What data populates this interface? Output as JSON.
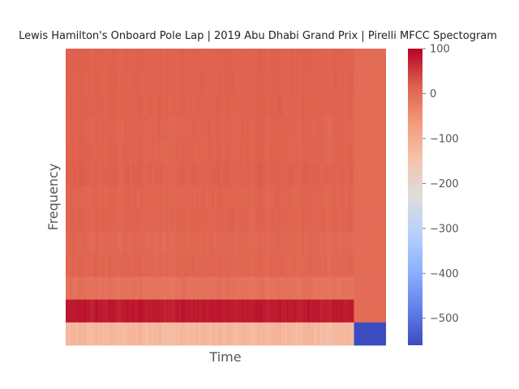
{
  "chart_data": {
    "type": "heatmap",
    "title": "Lewis Hamilton's Onboard Pole Lap | 2019 Abu Dhabi Grand Prix | Pirelli MFCC Spectogram",
    "xlabel": "Time",
    "ylabel": "Frequency",
    "x_ticks_shown": false,
    "y_ticks_shown": false,
    "grid": false,
    "colormap": "coolwarm",
    "value_range": [
      -560,
      100
    ],
    "colorbar": {
      "position": "right",
      "ticks": [
        100,
        0,
        -100,
        -200,
        -300,
        -400,
        -500
      ],
      "tick_labels": [
        "100",
        "0",
        "−100",
        "−200",
        "−300",
        "−400",
        "−500"
      ]
    },
    "n_coefficients": 13,
    "active_fraction_of_time": 0.9,
    "rows_top_to_bottom": [
      {
        "coefficient": 13,
        "mean": 14,
        "spread": 4,
        "padding_value": 0
      },
      {
        "coefficient": 12,
        "mean": 14,
        "spread": 5,
        "padding_value": 0
      },
      {
        "coefficient": 11,
        "mean": 14,
        "spread": 5,
        "padding_value": 0
      },
      {
        "coefficient": 10,
        "mean": 12,
        "spread": 6,
        "padding_value": 0
      },
      {
        "coefficient": 9,
        "mean": 12,
        "spread": 6,
        "padding_value": 0
      },
      {
        "coefficient": 8,
        "mean": 15,
        "spread": 6,
        "padding_value": 0
      },
      {
        "coefficient": 7,
        "mean": 10,
        "spread": 6,
        "padding_value": 0
      },
      {
        "coefficient": 6,
        "mean": 12,
        "spread": 6,
        "padding_value": 0
      },
      {
        "coefficient": 5,
        "mean": 6,
        "spread": 6,
        "padding_value": 0
      },
      {
        "coefficient": 4,
        "mean": 8,
        "spread": 6,
        "padding_value": 0
      },
      {
        "coefficient": 3,
        "mean": -8,
        "spread": 6,
        "padding_value": 0
      },
      {
        "coefficient": 2,
        "mean": 80,
        "spread": 8,
        "padding_value": 0
      },
      {
        "coefficient": 1,
        "mean": -125,
        "spread": 14,
        "padding_value": -560
      }
    ]
  }
}
